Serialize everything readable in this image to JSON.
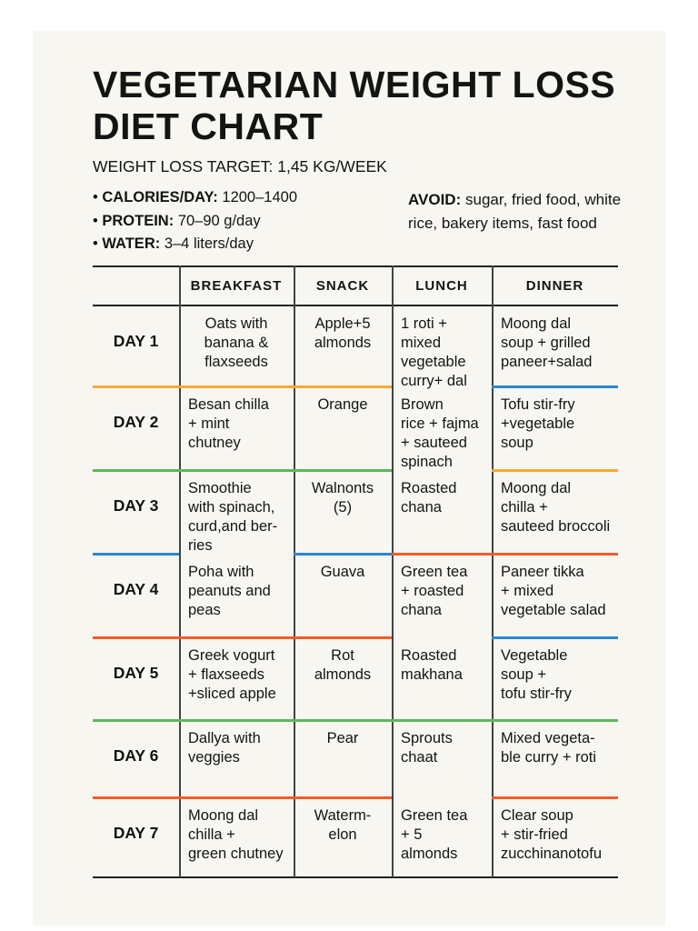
{
  "title": "VEGETARIAN WEIGHT LOSS DIET CHART",
  "target": "WEIGHT LOSS TARGET: 1,45 KG/WEEK",
  "stats": [
    {
      "label": "CALORIES/DAY:",
      "value": "1200–1400"
    },
    {
      "label": "PROTEIN:",
      "value": "70–90 g/day"
    },
    {
      "label": "WATER:",
      "value": "3–4 liters/day"
    }
  ],
  "avoid": {
    "label": "AVOID:",
    "text": "sugar, fried food, white rice, bakery items, fast food"
  },
  "colors": {
    "orange": "#f7a934",
    "green": "#5cb85c",
    "blue": "#2b87d1",
    "red": "#f25c2a"
  },
  "table": {
    "headers": [
      "BREAKFAST",
      "SNACK",
      "LUNCH",
      "DINNER"
    ],
    "rows": [
      {
        "day": "DAY 1",
        "breakfast": "Oats with\nbanana &\nflaxseeds",
        "snack": "Apple+5\nalmonds",
        "lunch": "1 roti +\nmixed\nvegetable\ncurry+ dal",
        "dinner": "Moong dal\nsoup + grilled\npaneer+salad"
      },
      {
        "day": "DAY 2",
        "breakfast": "Besan chilla\n+ mint\nchutney",
        "snack": "Orange",
        "lunch": "Brown\nrice + fajma\n+ sauteed\nspinach",
        "dinner": "Tofu stir-fry\n+vegetable\nsoup"
      },
      {
        "day": "DAY 3",
        "breakfast": "Smoothie\nwith spinach,\ncurd,and ber-\nries",
        "snack": "Walnonts\n(5)",
        "lunch": "Roasted\nchana",
        "dinner": "Moong dal\nchilla +\nsauteed broccoli"
      },
      {
        "day": "DAY 4",
        "breakfast": "Poha with\npeanuts and\npeas",
        "snack": "Guava",
        "lunch": "Green tea\n+ roasted\nchana",
        "dinner": "Paneer tikka\n+ mixed\nvegetable salad"
      },
      {
        "day": "DAY 5",
        "breakfast": "Greek vogurt\n+ flaxseeds\n+sliced apple",
        "snack": "Rot\nalmonds",
        "lunch": "Roasted\nmakhana",
        "dinner": "Vegetable\nsoup +\ntofu stir-fry"
      },
      {
        "day": "DAY 6",
        "breakfast": "Dallya with\nveggies",
        "snack": "Pear",
        "lunch": "Sprouts\nchaat",
        "dinner": "Mixed vegeta-\nble curry + roti"
      },
      {
        "day": "DAY 7",
        "breakfast": "Moong dal\nchilla +\ngreen chutney",
        "snack": "Waterm-\nelon",
        "lunch": "Green tea\n+ 5\nalmonds",
        "dinner": "Clear soup\n+ stir-fried\nzucchinanotofu"
      }
    ]
  }
}
